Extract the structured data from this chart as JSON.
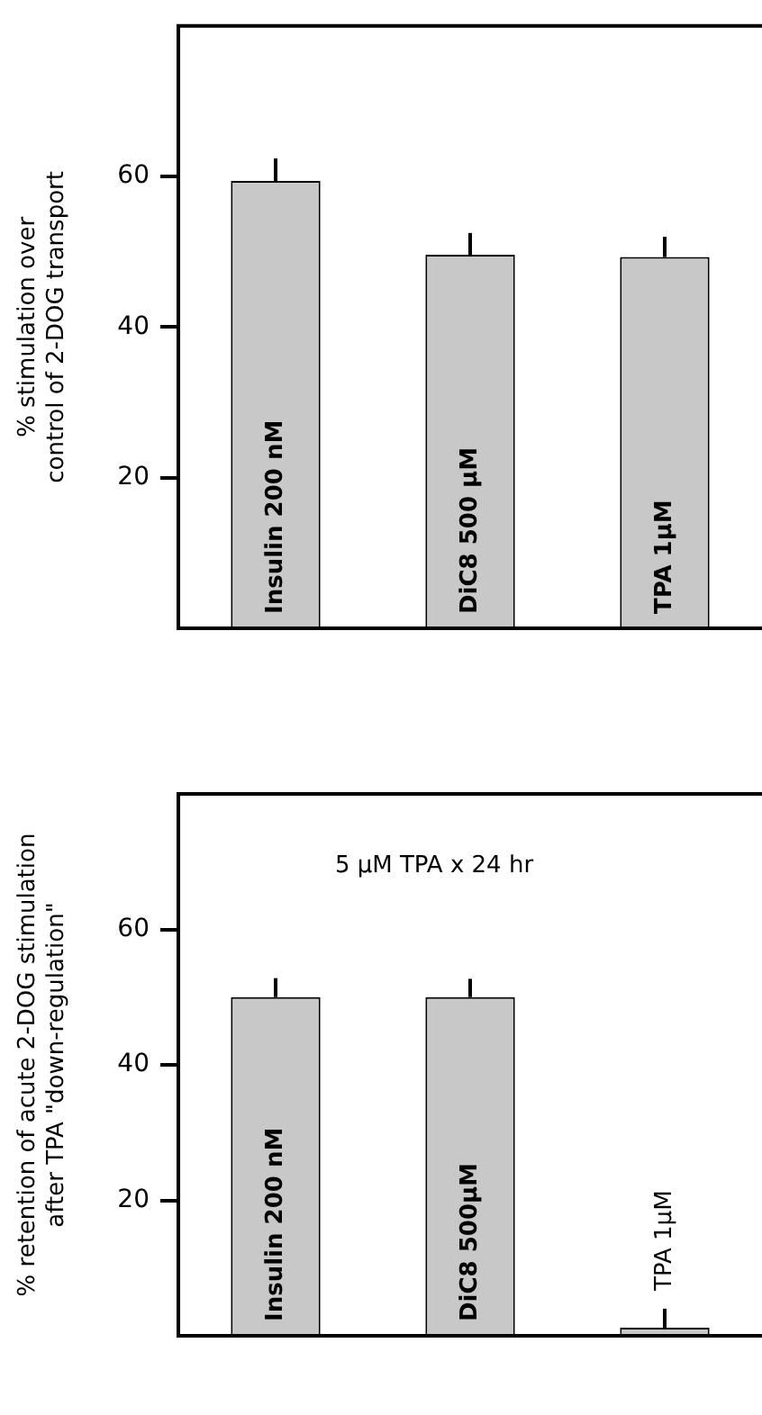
{
  "chart_data": [
    {
      "type": "bar",
      "ylabel": "% stimulation over control of 2-DOG transport",
      "categories": [
        "Insulin 200 nM",
        "DiC8 500 µM",
        "TPA 1µM"
      ],
      "series": [
        {
          "color": "#c8c8c8",
          "values": [
            59.4,
            49.6,
            49.3
          ],
          "errors": [
            3,
            2.9,
            2.7
          ]
        }
      ],
      "ylim": [
        0,
        80
      ],
      "yticks": [
        20,
        40,
        60
      ],
      "grid": false,
      "legend": false,
      "tick_labels": "y"
    },
    {
      "type": "bar",
      "ylabel": "% retention of acute 2-DOG stimulation after TPA \"down-regulation\"",
      "annotations": [
        "5 µM TPA x 24 hr"
      ],
      "categories": [
        "Insulin 200 nM",
        "DiC8 500µM",
        "TPA 1µM"
      ],
      "series": [
        {
          "color": "#c8c8c8",
          "values": [
            50,
            50,
            1.2
          ],
          "errors": [
            2.8,
            2.7,
            2.8
          ]
        }
      ],
      "ylim": [
        0,
        80
      ],
      "yticks": [
        20,
        40,
        60
      ],
      "grid": false,
      "legend": false,
      "tick_labels": "y"
    }
  ]
}
